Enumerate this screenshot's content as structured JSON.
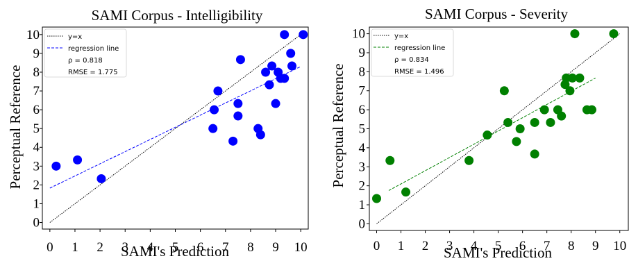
{
  "chart_data": [
    {
      "type": "scatter",
      "title": "SAMI Corpus - Intelligibility",
      "xlabel": "SAMI's Prediction",
      "ylabel": "Perceptual Reference",
      "xlim": [
        -0.3,
        10.3
      ],
      "ylim": [
        -0.35,
        10.4
      ],
      "xticks": [
        0,
        1,
        2,
        3,
        4,
        5,
        6,
        7,
        8,
        9,
        10
      ],
      "yticks": [
        0,
        1,
        2,
        3,
        4,
        5,
        6,
        7,
        8,
        9,
        10
      ],
      "color": "#0000ff",
      "legend": {
        "placement": "top-left",
        "identity_label": "y=x",
        "regression_label": "regression line",
        "rho_text": "ρ = 0.818",
        "rmse_text": "RMSE = 1.775"
      },
      "identity_line": [
        [
          0,
          0
        ],
        [
          10,
          10
        ]
      ],
      "regression_line": [
        [
          0,
          1.83
        ],
        [
          10,
          8.3
        ]
      ],
      "points": [
        {
          "x": 0.25,
          "y": 3.0
        },
        {
          "x": 1.1,
          "y": 3.33
        },
        {
          "x": 2.05,
          "y": 2.33
        },
        {
          "x": 6.5,
          "y": 5.0
        },
        {
          "x": 6.55,
          "y": 6.0
        },
        {
          "x": 6.7,
          "y": 7.0
        },
        {
          "x": 7.3,
          "y": 4.33
        },
        {
          "x": 7.5,
          "y": 5.67
        },
        {
          "x": 7.5,
          "y": 6.33
        },
        {
          "x": 7.6,
          "y": 8.67
        },
        {
          "x": 8.3,
          "y": 5.0
        },
        {
          "x": 8.4,
          "y": 4.67
        },
        {
          "x": 8.6,
          "y": 8.0
        },
        {
          "x": 8.75,
          "y": 7.33
        },
        {
          "x": 8.85,
          "y": 8.33
        },
        {
          "x": 9.0,
          "y": 6.33
        },
        {
          "x": 9.1,
          "y": 8.0
        },
        {
          "x": 9.2,
          "y": 7.67
        },
        {
          "x": 9.35,
          "y": 10.0
        },
        {
          "x": 9.35,
          "y": 7.67
        },
        {
          "x": 9.6,
          "y": 9.0
        },
        {
          "x": 9.65,
          "y": 8.33
        },
        {
          "x": 10.1,
          "y": 10.0
        }
      ]
    },
    {
      "type": "scatter",
      "title": "SAMI Corpus - Severity",
      "xlabel": "SAMI's Prediction",
      "ylabel": "Perceptual Reference",
      "xlim": [
        -0.3,
        10.35
      ],
      "ylim": [
        -0.35,
        10.35
      ],
      "xticks": [
        0,
        1,
        2,
        3,
        4,
        5,
        6,
        7,
        8,
        9,
        10
      ],
      "yticks": [
        0,
        1,
        2,
        3,
        4,
        5,
        6,
        7,
        8,
        9,
        10
      ],
      "color": "#008000",
      "legend": {
        "placement": "top-left",
        "identity_label": "y=x",
        "regression_label": "regression line",
        "rho_text": "ρ = 0.834",
        "rmse_text": "RMSE = 1.496"
      },
      "identity_line": [
        [
          0,
          0
        ],
        [
          10,
          10
        ]
      ],
      "regression_line": [
        [
          0.5,
          1.75
        ],
        [
          9.0,
          7.67
        ]
      ],
      "points": [
        {
          "x": 0.0,
          "y": 1.33
        },
        {
          "x": 0.55,
          "y": 3.33
        },
        {
          "x": 1.2,
          "y": 1.67
        },
        {
          "x": 3.8,
          "y": 3.33
        },
        {
          "x": 4.55,
          "y": 4.67
        },
        {
          "x": 5.25,
          "y": 7.0
        },
        {
          "x": 5.4,
          "y": 5.33
        },
        {
          "x": 5.75,
          "y": 4.33
        },
        {
          "x": 5.9,
          "y": 5.0
        },
        {
          "x": 6.5,
          "y": 5.33
        },
        {
          "x": 6.5,
          "y": 3.67
        },
        {
          "x": 6.9,
          "y": 6.0
        },
        {
          "x": 7.15,
          "y": 5.33
        },
        {
          "x": 7.45,
          "y": 6.0
        },
        {
          "x": 7.6,
          "y": 5.67
        },
        {
          "x": 7.75,
          "y": 7.33
        },
        {
          "x": 7.8,
          "y": 7.67
        },
        {
          "x": 7.95,
          "y": 7.0
        },
        {
          "x": 8.05,
          "y": 7.67
        },
        {
          "x": 8.15,
          "y": 10.0
        },
        {
          "x": 8.35,
          "y": 7.67
        },
        {
          "x": 8.65,
          "y": 6.0
        },
        {
          "x": 8.85,
          "y": 6.0
        },
        {
          "x": 9.75,
          "y": 10.0
        }
      ]
    }
  ]
}
